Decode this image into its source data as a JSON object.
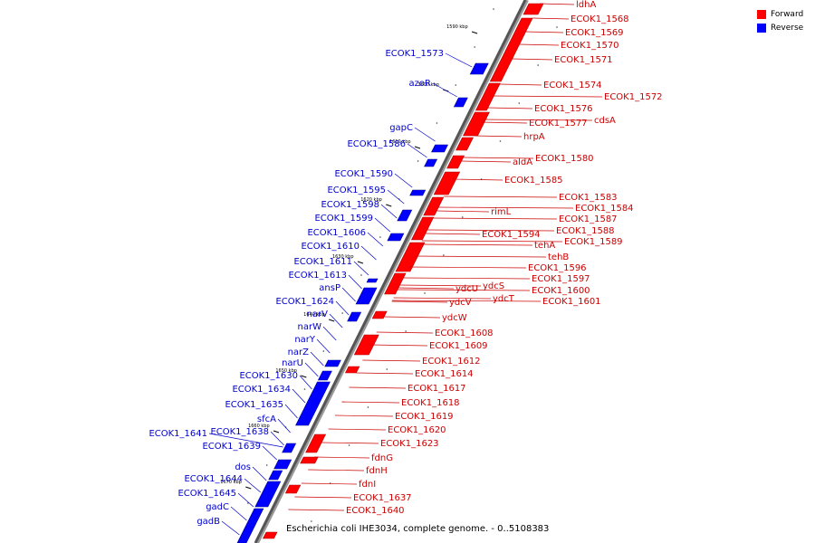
{
  "caption": "Escherichia coli IHE3034, complete genome. - 0..5108383",
  "legend": [
    {
      "label": "Forward",
      "color": "#ff0000"
    },
    {
      "label": "Reverse",
      "color": "#0000ff"
    }
  ],
  "tick_labels": [
    "1590 kbp",
    "1600 kbp",
    "1610 kbp",
    "1620 kbp",
    "1630 kbp",
    "1640 kbp",
    "1650 kbp",
    "1660 kbp",
    "1670 kbp"
  ],
  "forward_labels": [
    "ldhA",
    "ECOK1_1568",
    "ECOK1_1569",
    "ECOK1_1570",
    "ECOK1_1571",
    "ECOK1_1574",
    "ECOK1_1572",
    "ECOK1_1576",
    "ECOK1_1577",
    "cdsA",
    "hrpA",
    "aldA",
    "ECOK1_1580",
    "ECOK1_1585",
    "ECOK1_1583",
    "ECOK1_1584",
    "rimL",
    "ECOK1_1587",
    "ECOK1_1588",
    "ECOK1_1594",
    "ECOK1_1589",
    "tehA",
    "tehB",
    "ECOK1_1596",
    "ECOK1_1597",
    "ydcS",
    "ydcU",
    "ECOK1_1600",
    "ydcT",
    "ydcV",
    "ECOK1_1601",
    "ydcW",
    "ECOK1_1608",
    "ECOK1_1609",
    "ECOK1_1612",
    "ECOK1_1614",
    "ECOK1_1617",
    "ECOK1_1618",
    "ECOK1_1619",
    "ECOK1_1620",
    "ECOK1_1623",
    "fdnG",
    "fdnH",
    "fdnI",
    "ECOK1_1637",
    "ECOK1_1640"
  ],
  "reverse_labels": [
    "ECOK1_1573",
    "azoR",
    "gapC",
    "ECOK1_1586",
    "ECOK1_1590",
    "ECOK1_1595",
    "ECOK1_1598",
    "ECOK1_1599",
    "ECOK1_1606",
    "ECOK1_1610",
    "ECOK1_1611",
    "ECOK1_1613",
    "ansP",
    "ECOK1_1624",
    "narV",
    "narW",
    "narY",
    "narZ",
    "narU",
    "ECOK1_1630",
    "ECOK1_1634",
    "ECOK1_1635",
    "sfcA",
    "ECOK1_1641",
    "ECOK1_1638",
    "ECOK1_1639",
    "dos",
    "ECOK1_1644",
    "ECOK1_1645",
    "gadC",
    "gadB"
  ]
}
